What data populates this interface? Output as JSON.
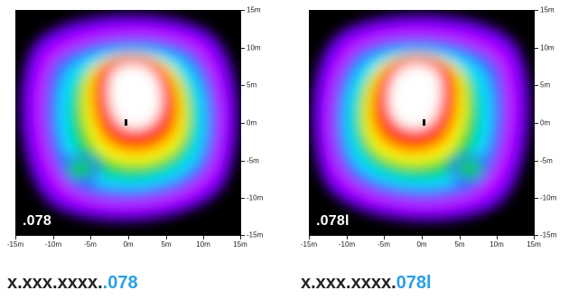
{
  "panels": [
    {
      "plot_label": ".078",
      "caption_prefix": "x.xxx.xxxx.",
      "caption_suffix": ".078",
      "x_ticks": [
        "-15m",
        "-10m",
        "-5m",
        "0m",
        "5m",
        "10m",
        "15m"
      ],
      "y_ticks": [
        "15m",
        "10m",
        "5m",
        "0m",
        "-5m",
        "-10m",
        "-15m"
      ],
      "mirrored": false
    },
    {
      "plot_label": ".078l",
      "caption_prefix": "x.xxx.xxxx.",
      "caption_suffix": "078l",
      "x_ticks": [
        "-15m",
        "-10m",
        "-5m",
        "0m",
        "5m",
        "10m",
        "15m"
      ],
      "y_ticks": [
        "15m",
        "10m",
        "5m",
        "0m",
        "-5m",
        "-10m",
        "-15m"
      ],
      "mirrored": true
    }
  ],
  "colors": {
    "background": "#000000",
    "caption_accent": "#2aa0e6",
    "heat_scale": [
      "#7000ff",
      "#c000ff",
      "#3060ff",
      "#00e0ff",
      "#00d040",
      "#ffff00",
      "#ff8000",
      "#ff0000",
      "#ffffff"
    ]
  }
}
